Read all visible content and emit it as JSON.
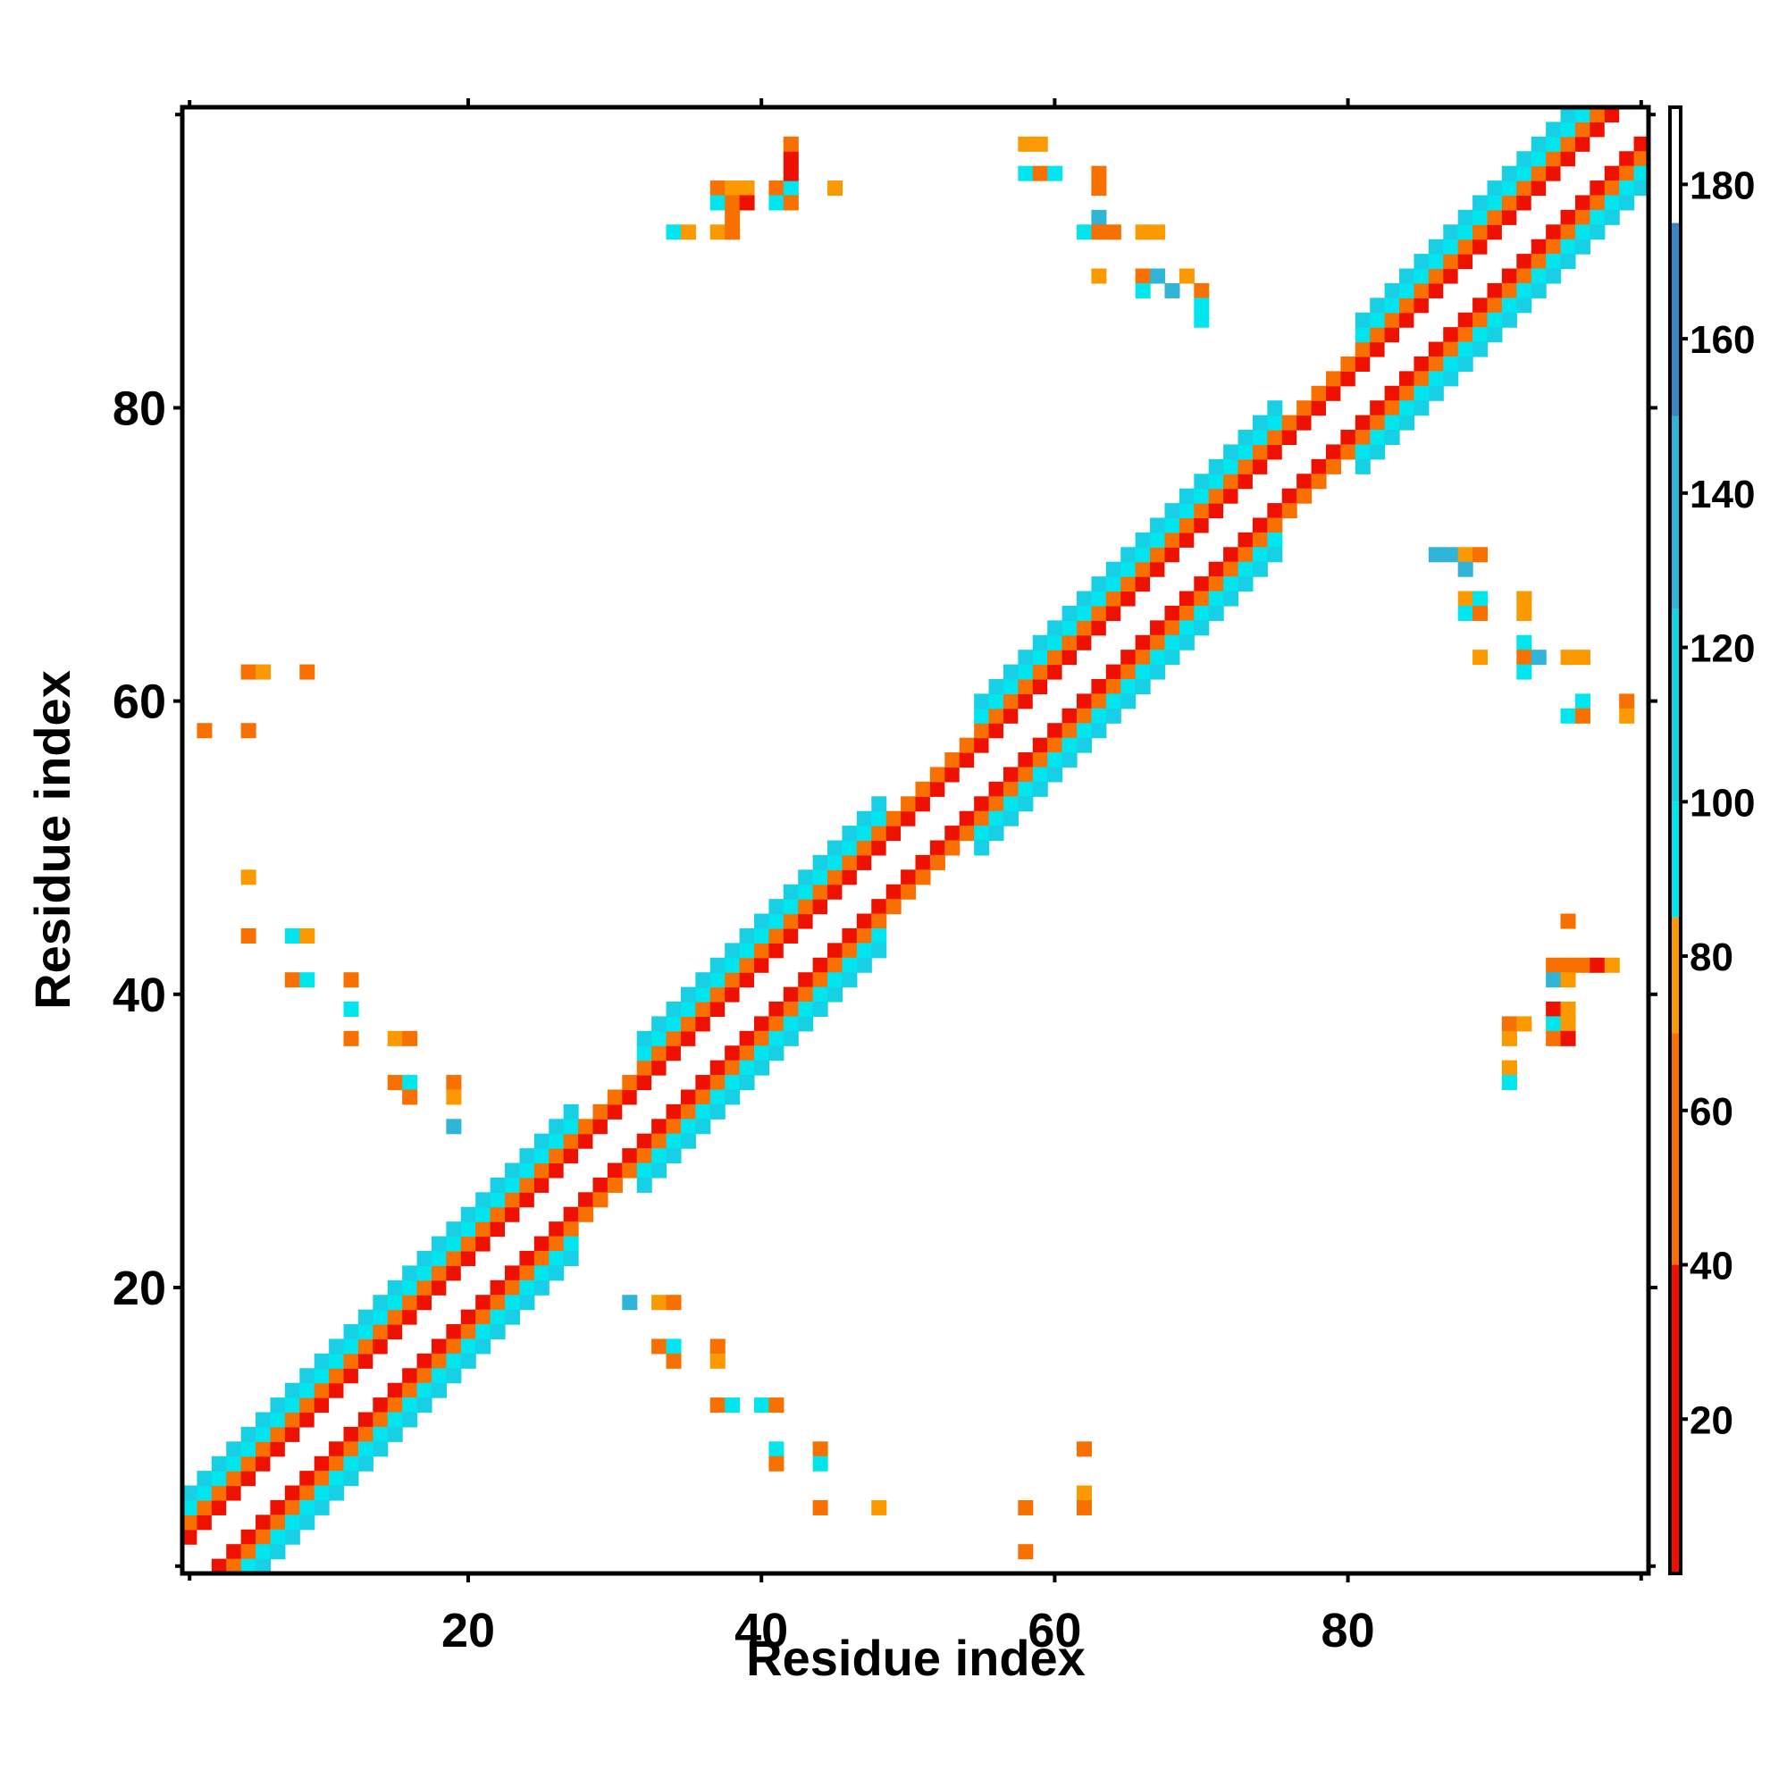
{
  "chart_data": {
    "type": "heatmap",
    "title": "",
    "xlabel": "Residue index",
    "ylabel": "Residue index",
    "xlim": [
      0.5,
      100.5
    ],
    "ylim": [
      0.5,
      100.5
    ],
    "x_ticks": [
      20,
      40,
      60,
      80
    ],
    "y_ticks": [
      20,
      40,
      60,
      80
    ],
    "colorbar": {
      "range": [
        0,
        190
      ],
      "ticks": [
        20,
        40,
        60,
        80,
        100,
        120,
        140,
        160,
        180
      ],
      "bins": [
        {
          "from": 0,
          "to": 40,
          "color": "#ee1100"
        },
        {
          "from": 40,
          "to": 70,
          "color": "#f77000"
        },
        {
          "from": 70,
          "to": 85,
          "color": "#fa9a00"
        },
        {
          "from": 85,
          "to": 100,
          "color": "#00e5ee"
        },
        {
          "from": 100,
          "to": 125,
          "color": "#18d0e6"
        },
        {
          "from": 125,
          "to": 150,
          "color": "#30b4d8"
        },
        {
          "from": 150,
          "to": 175,
          "color": "#3a86c4"
        },
        {
          "from": 175,
          "to": 190,
          "color": "#ffffff"
        }
      ]
    },
    "band": {
      "description": "symmetric band of contacts along the diagonal; value by offset |i-j|",
      "offset_values": {
        "1": 190,
        "2": 20,
        "3": 50,
        "4": 95,
        "5": 110
      },
      "segments": [
        {
          "from": 1,
          "to": 27,
          "max_offset": 5
        },
        {
          "from": 28,
          "to": 31,
          "max_offset": 3
        },
        {
          "from": 32,
          "to": 48,
          "max_offset": 5
        },
        {
          "from": 49,
          "to": 54,
          "max_offset": 3
        },
        {
          "from": 55,
          "to": 75,
          "max_offset": 5
        },
        {
          "from": 76,
          "to": 80,
          "max_offset": 3
        },
        {
          "from": 81,
          "to": 100,
          "max_offset": 5
        }
      ]
    },
    "cells": [
      [
        2,
        58,
        60
      ],
      [
        5,
        58,
        60
      ],
      [
        5,
        62,
        45
      ],
      [
        6,
        62,
        75
      ],
      [
        9,
        62,
        60
      ],
      [
        5,
        48,
        75
      ],
      [
        5,
        44,
        60
      ],
      [
        8,
        44,
        95
      ],
      [
        9,
        44,
        75
      ],
      [
        8,
        41,
        60
      ],
      [
        9,
        41,
        95
      ],
      [
        12,
        41,
        60
      ],
      [
        12,
        39,
        95
      ],
      [
        12,
        37,
        60
      ],
      [
        15,
        37,
        75
      ],
      [
        16,
        37,
        60
      ],
      [
        15,
        34,
        60
      ],
      [
        16,
        34,
        95
      ],
      [
        16,
        33,
        60
      ],
      [
        19,
        34,
        60
      ],
      [
        19,
        33,
        75
      ],
      [
        19,
        31,
        130
      ],
      [
        31,
        19,
        130
      ],
      [
        33,
        19,
        75
      ],
      [
        34,
        19,
        60
      ],
      [
        33,
        16,
        60
      ],
      [
        34,
        16,
        95
      ],
      [
        34,
        15,
        60
      ],
      [
        37,
        16,
        60
      ],
      [
        37,
        15,
        75
      ],
      [
        37,
        12,
        60
      ],
      [
        38,
        12,
        95
      ],
      [
        40,
        12,
        95
      ],
      [
        41,
        12,
        60
      ],
      [
        41,
        9,
        95
      ],
      [
        41,
        8,
        60
      ],
      [
        44,
        9,
        60
      ],
      [
        44,
        8,
        95
      ],
      [
        44,
        5,
        60
      ],
      [
        48,
        5,
        75
      ],
      [
        58,
        5,
        60
      ],
      [
        58,
        2,
        60
      ],
      [
        62,
        9,
        60
      ],
      [
        62,
        6,
        75
      ],
      [
        62,
        5,
        45
      ],
      [
        58,
        98,
        75
      ],
      [
        59,
        98,
        75
      ],
      [
        58,
        96,
        95
      ],
      [
        59,
        96,
        60
      ],
      [
        60,
        96,
        95
      ],
      [
        63,
        96,
        60
      ],
      [
        63,
        95,
        60
      ],
      [
        63,
        93,
        130
      ],
      [
        62,
        92,
        95
      ],
      [
        63,
        92,
        45
      ],
      [
        64,
        92,
        60
      ],
      [
        66,
        92,
        75
      ],
      [
        67,
        92,
        75
      ],
      [
        63,
        89,
        75
      ],
      [
        66,
        89,
        60
      ],
      [
        67,
        89,
        130
      ],
      [
        66,
        88,
        95
      ],
      [
        69,
        89,
        75
      ],
      [
        68,
        88,
        130
      ],
      [
        70,
        88,
        60
      ],
      [
        70,
        87,
        95
      ],
      [
        70,
        86,
        95
      ],
      [
        37,
        95,
        60
      ],
      [
        38,
        95,
        75
      ],
      [
        39,
        95,
        75
      ],
      [
        41,
        95,
        60
      ],
      [
        42,
        95,
        95
      ],
      [
        45,
        95,
        75
      ],
      [
        37,
        94,
        95
      ],
      [
        38,
        94,
        60
      ],
      [
        39,
        94,
        20
      ],
      [
        41,
        94,
        95
      ],
      [
        42,
        94,
        60
      ],
      [
        42,
        97,
        20
      ],
      [
        42,
        96,
        20
      ],
      [
        42,
        98,
        60
      ],
      [
        34,
        92,
        95
      ],
      [
        35,
        92,
        75
      ],
      [
        37,
        92,
        75
      ],
      [
        38,
        92,
        60
      ],
      [
        38,
        93,
        60
      ],
      [
        86,
        70,
        130
      ],
      [
        87,
        70,
        130
      ],
      [
        88,
        70,
        75
      ],
      [
        89,
        70,
        60
      ],
      [
        88,
        69,
        130
      ],
      [
        88,
        67,
        75
      ],
      [
        89,
        67,
        95
      ],
      [
        88,
        66,
        95
      ],
      [
        89,
        66,
        60
      ],
      [
        92,
        67,
        75
      ],
      [
        92,
        66,
        75
      ],
      [
        89,
        63,
        75
      ],
      [
        92,
        64,
        95
      ],
      [
        92,
        63,
        60
      ],
      [
        93,
        63,
        130
      ],
      [
        95,
        63,
        75
      ],
      [
        96,
        63,
        75
      ],
      [
        92,
        62,
        95
      ],
      [
        96,
        60,
        95
      ],
      [
        95,
        59,
        95
      ],
      [
        96,
        59,
        60
      ],
      [
        99,
        60,
        60
      ],
      [
        99,
        59,
        75
      ],
      [
        95,
        45,
        60
      ],
      [
        94,
        42,
        45
      ],
      [
        95,
        42,
        60
      ],
      [
        96,
        42,
        60
      ],
      [
        97,
        42,
        20
      ],
      [
        98,
        42,
        75
      ],
      [
        94,
        41,
        130
      ],
      [
        95,
        41,
        75
      ],
      [
        94,
        39,
        20
      ],
      [
        95,
        39,
        75
      ],
      [
        94,
        38,
        95
      ],
      [
        95,
        38,
        75
      ],
      [
        94,
        37,
        60
      ],
      [
        95,
        37,
        20
      ],
      [
        91,
        38,
        60
      ],
      [
        92,
        38,
        75
      ],
      [
        91,
        37,
        75
      ],
      [
        91,
        35,
        75
      ],
      [
        91,
        34,
        95
      ]
    ]
  }
}
